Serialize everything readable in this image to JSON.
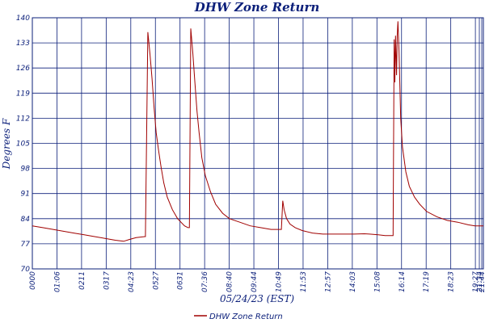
{
  "chart_data": {
    "type": "line",
    "title": "DHW Zone Return",
    "xlabel": "05/24/23 (EST)",
    "ylabel": "Degrees F",
    "ylim": [
      70,
      140
    ],
    "yticks": [
      70,
      77,
      84,
      91,
      98,
      105,
      112,
      119,
      126,
      133,
      140
    ],
    "xticks": [
      "0000",
      "01:06",
      "0211",
      "0317",
      "04:23",
      "0527",
      "0631",
      "07:36",
      "08:40",
      "09:44",
      "10:49",
      "11:53",
      "12:57",
      "14:03",
      "15:08",
      "16:14",
      "17:19",
      "18:23",
      "19:27",
      "2031",
      "21:34",
      "21:44"
    ],
    "grid": true,
    "legend_position": "bottom-center",
    "colors": {
      "series": "#a00000",
      "axis": "#0b1f7a"
    },
    "series": [
      {
        "name": "DHW Zone Return",
        "x": [
          "00:00",
          "00:30",
          "01:00",
          "01:30",
          "02:00",
          "02:30",
          "03:00",
          "03:30",
          "04:00",
          "04:24",
          "04:40",
          "05:00",
          "05:25",
          "05:27",
          "05:34",
          "05:40",
          "05:46",
          "05:52",
          "05:58",
          "06:05",
          "06:12",
          "06:20",
          "06:30",
          "06:45",
          "07:00",
          "07:20",
          "07:30",
          "07:34",
          "07:38",
          "07:44",
          "07:50",
          "07:56",
          "08:02",
          "08:10",
          "08:20",
          "08:35",
          "08:50",
          "09:10",
          "09:30",
          "10:00",
          "10:30",
          "11:00",
          "11:30",
          "11:56",
          "12:00",
          "12:04",
          "12:08",
          "12:15",
          "12:25",
          "12:40",
          "13:00",
          "13:30",
          "14:00",
          "14:30",
          "15:00",
          "15:30",
          "16:00",
          "16:15",
          "16:40",
          "17:00",
          "17:23",
          "17:26",
          "17:28",
          "17:30",
          "17:33",
          "17:35",
          "17:37",
          "17:40",
          "17:45",
          "17:50",
          "18:00",
          "18:10",
          "18:25",
          "18:40",
          "19:00",
          "19:30",
          "20:00",
          "20:30",
          "21:00",
          "21:20",
          "21:44"
        ],
        "values": [
          82,
          81.5,
          81,
          80.5,
          80,
          79.5,
          79,
          78.5,
          78,
          77.7,
          78.2,
          78.7,
          79,
          79,
          136,
          130,
          123,
          115,
          108,
          103,
          98.5,
          94,
          90,
          86.5,
          84,
          82,
          81.5,
          81.5,
          137,
          130,
          122,
          114,
          108,
          101,
          96,
          91.5,
          88,
          85.5,
          84,
          83,
          82,
          81.5,
          81,
          81,
          81,
          89,
          86.5,
          84,
          82.5,
          81.5,
          80.7,
          80,
          79.7,
          79.7,
          79.7,
          79.7,
          79.8,
          79.7,
          79.5,
          79.3,
          79.3,
          134,
          122,
          135,
          124,
          135,
          139,
          131,
          112,
          104,
          97,
          93,
          90,
          88,
          86,
          84.5,
          83.5,
          83,
          82.3,
          82,
          82
        ]
      }
    ]
  }
}
